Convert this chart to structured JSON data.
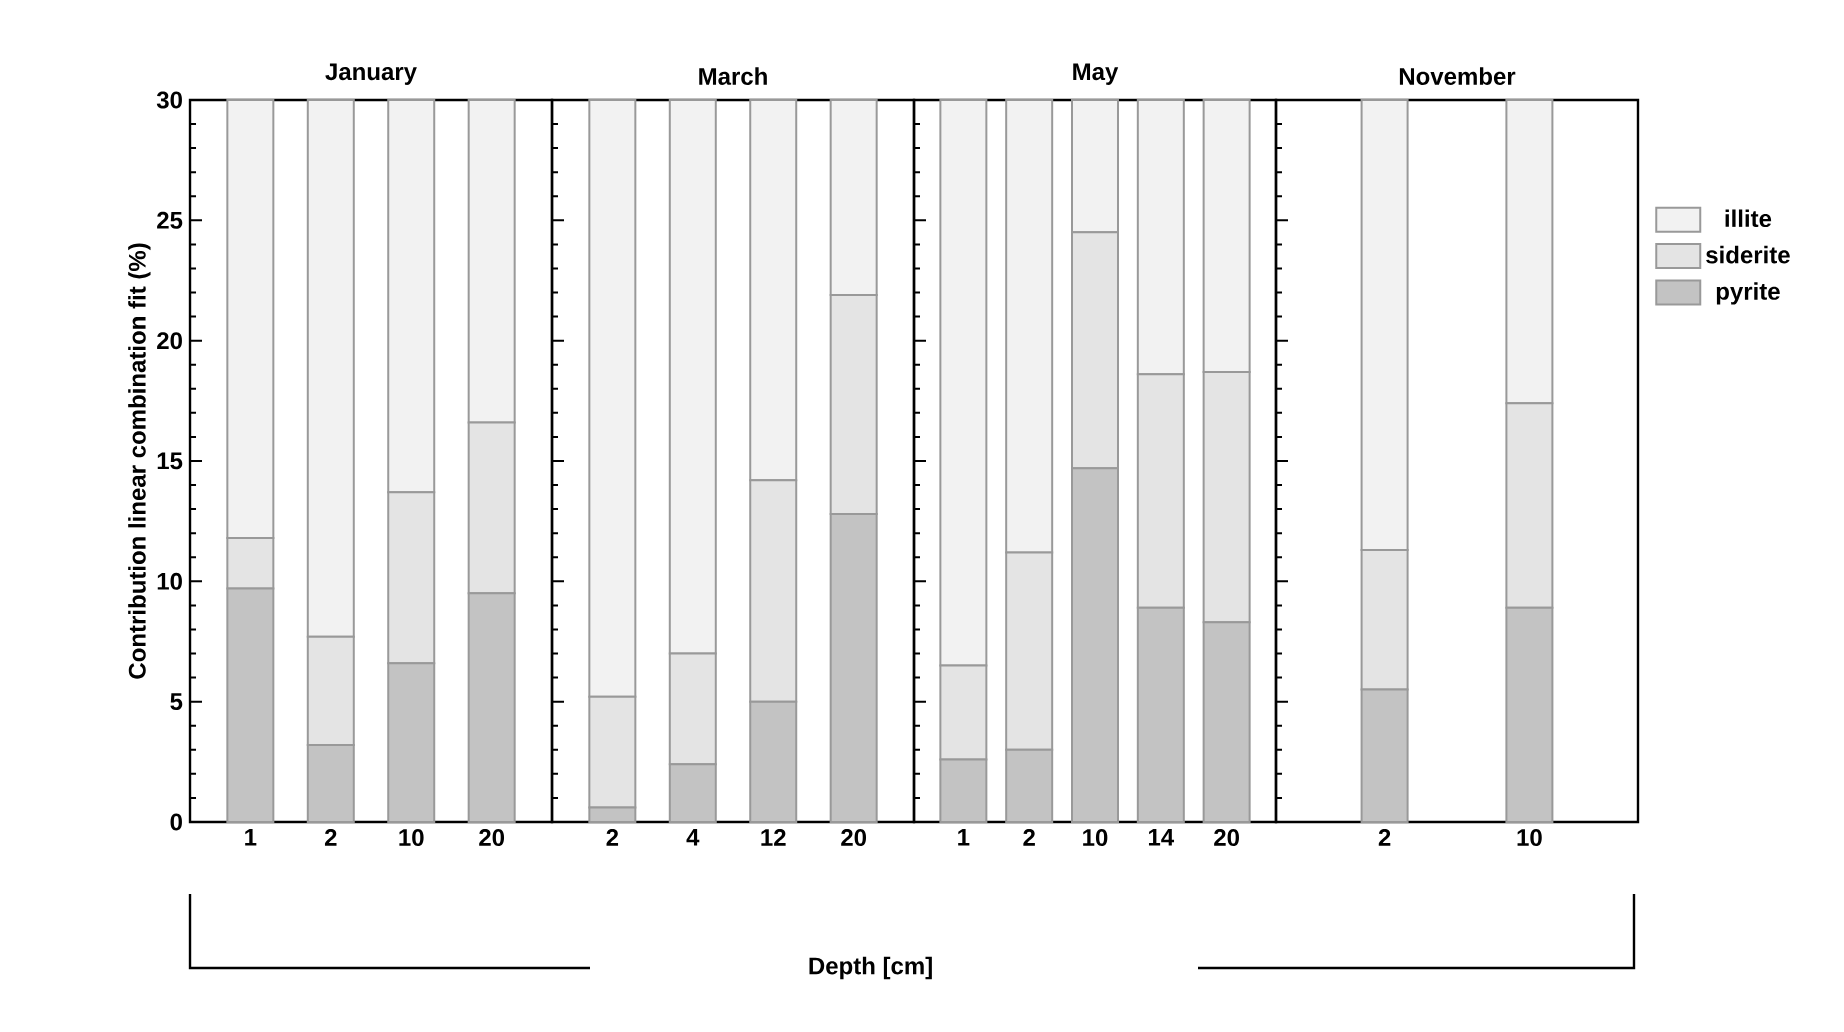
{
  "chart_data": [
    {
      "type": "bar",
      "stacked": true,
      "title": "January",
      "ylabel": "Contribution linear combination fit (%)",
      "categories": [
        "1",
        "2",
        "10",
        "20"
      ],
      "ylim": [
        0,
        30
      ],
      "yticks": [
        0,
        5,
        10,
        15,
        20,
        25,
        30
      ],
      "series": [
        {
          "color": "#c3c3c3",
          "values": [
            9.7,
            3.2,
            6.6,
            9.5
          ]
        },
        {
          "color": "#e4e4e4",
          "values": [
            2.1,
            4.5,
            7.1,
            7.1
          ]
        },
        {
          "color": "#f2f2f2",
          "values": [
            18.2,
            22.3,
            16.3,
            13.4
          ]
        }
      ]
    },
    {
      "type": "bar",
      "stacked": true,
      "title": "March",
      "xlabel": "Depth [cm]",
      "categories": [
        "2",
        "4",
        "12",
        "20"
      ],
      "ylim": [
        0,
        30
      ],
      "yticks": [
        0,
        5,
        10,
        15,
        20,
        25,
        30
      ],
      "tick_labels": "x",
      "series": [
        {
          "color": "#c3c3c3",
          "values": [
            0.6,
            2.4,
            5.0,
            12.8
          ]
        },
        {
          "color": "#e4e4e4",
          "values": [
            4.6,
            4.6,
            9.2,
            9.1
          ]
        },
        {
          "color": "#f2f2f2",
          "values": [
            24.8,
            23.0,
            15.8,
            8.1
          ]
        }
      ]
    },
    {
      "type": "bar",
      "stacked": true,
      "title": "May",
      "categories": [
        "1",
        "2",
        "10",
        "14",
        "20"
      ],
      "ylim": [
        0,
        30
      ],
      "yticks": [
        0,
        5,
        10,
        15,
        20,
        25,
        30
      ],
      "tick_labels": "x",
      "series": [
        {
          "color": "#c3c3c3",
          "values": [
            2.6,
            3.0,
            14.7,
            8.9,
            8.3
          ]
        },
        {
          "color": "#e4e4e4",
          "values": [
            3.9,
            8.2,
            9.8,
            9.7,
            10.4
          ]
        },
        {
          "color": "#f2f2f2",
          "values": [
            23.5,
            18.8,
            5.5,
            11.4,
            11.3
          ]
        }
      ]
    },
    {
      "type": "bar",
      "stacked": true,
      "title": "November",
      "categories": [
        "2",
        "10"
      ],
      "ylim": [
        0,
        30
      ],
      "yticks": [
        0,
        5,
        10,
        15,
        20,
        25,
        30
      ],
      "tick_labels": "x",
      "legend": "right",
      "series": [
        {
          "name": "pyrite",
          "color": "#c3c3c3",
          "values": [
            5.5,
            8.9
          ]
        },
        {
          "name": "siderite",
          "color": "#e4e4e4",
          "values": [
            5.8,
            8.5
          ]
        },
        {
          "name": "illite",
          "color": "#f2f2f2",
          "values": [
            18.7,
            12.6
          ]
        }
      ]
    }
  ]
}
